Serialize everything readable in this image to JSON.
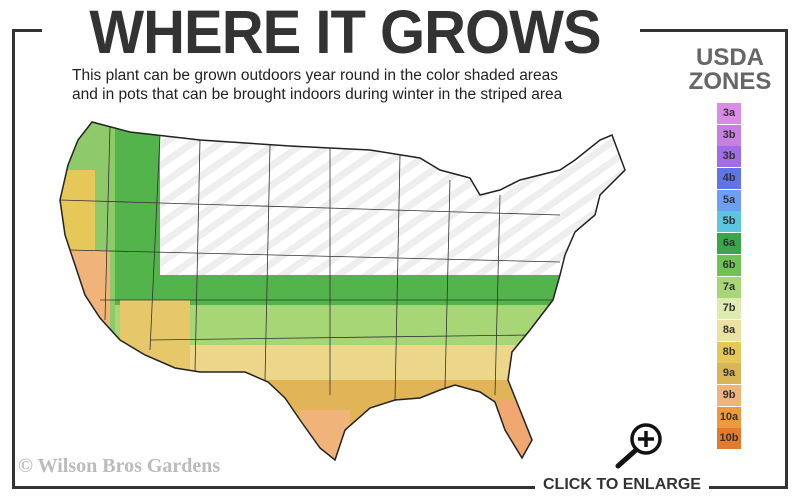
{
  "title": "WHERE IT GROWS",
  "subtitle_line1": "This plant can be grown outdoors year round in the color shaded areas",
  "subtitle_line2": "and in pots that can be brought indoors during winter in the striped area",
  "legend": {
    "title_line1": "USDA",
    "title_line2": "ZONES",
    "zones": [
      {
        "label": "3a",
        "color": "#d98be6"
      },
      {
        "label": "3b",
        "color": "#c77fe0"
      },
      {
        "label": "3b",
        "color": "#a06ce8"
      },
      {
        "label": "4b",
        "color": "#5f74e6"
      },
      {
        "label": "5a",
        "color": "#6f9ef5"
      },
      {
        "label": "5b",
        "color": "#5cc5e0"
      },
      {
        "label": "6a",
        "color": "#3aa64a"
      },
      {
        "label": "6b",
        "color": "#6fc256"
      },
      {
        "label": "7a",
        "color": "#a6d675"
      },
      {
        "label": "7b",
        "color": "#ddebb0"
      },
      {
        "label": "8a",
        "color": "#ebe1a0"
      },
      {
        "label": "8b",
        "color": "#e6c85a"
      },
      {
        "label": "9a",
        "color": "#d9b55a"
      },
      {
        "label": "9b",
        "color": "#f0b47a"
      },
      {
        "label": "10a",
        "color": "#ec9a3c"
      },
      {
        "label": "10b",
        "color": "#e47b2c"
      }
    ]
  },
  "copyright": "© Wilson Bros Gardens",
  "enlarge_label": "CLICK TO ENLARGE",
  "icons": {
    "enlarge": "magnifier-plus-icon"
  }
}
